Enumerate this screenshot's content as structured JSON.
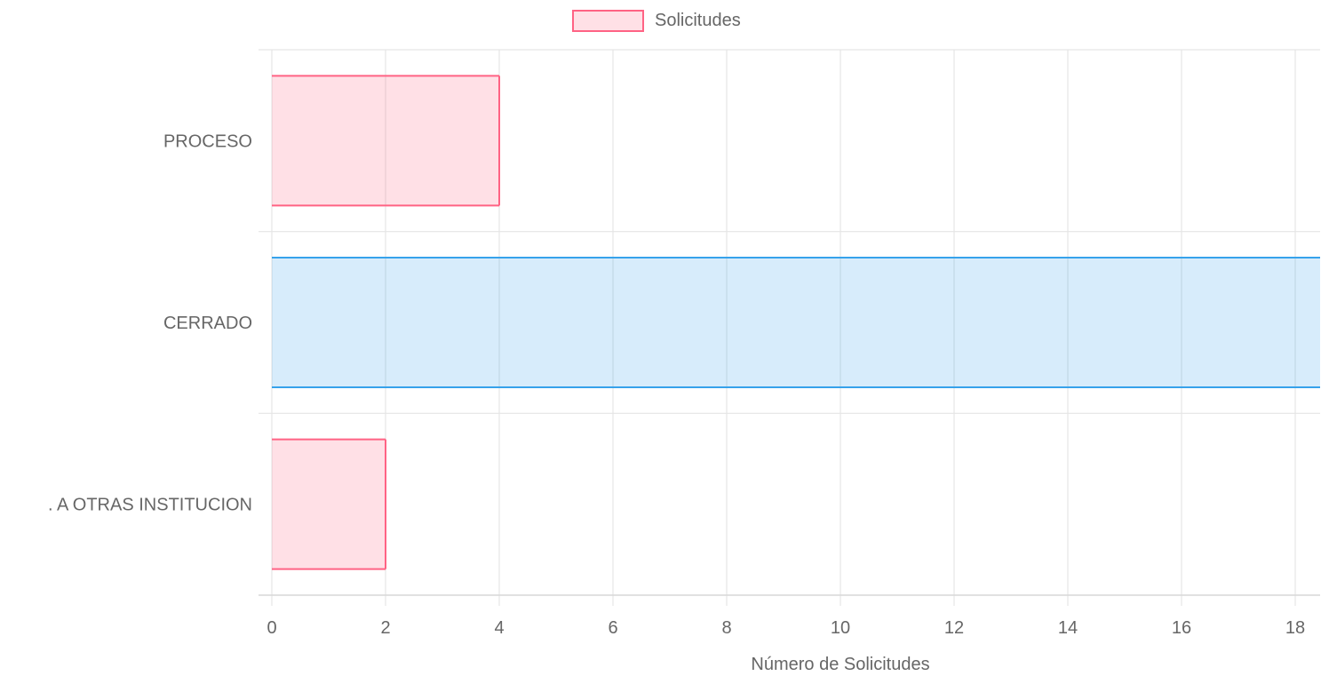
{
  "chart_data": {
    "type": "bar",
    "orientation": "horizontal",
    "categories": [
      "PROCESO",
      "CERRADO",
      "TRANSFERIDA A OTRAS INSTITUCIONES"
    ],
    "category_labels_shown": [
      "PROCESO",
      "CERRADO",
      ". A OTRAS INSTITUCION"
    ],
    "series": [
      {
        "name": "Solicitudes",
        "values": [
          4,
          19,
          2
        ]
      }
    ],
    "bar_colors": [
      {
        "fill": "rgba(255, 99, 132, 0.2)",
        "stroke": "#ff6384"
      },
      {
        "fill": "rgba(54, 162, 235, 0.2)",
        "stroke": "#36a2eb"
      },
      {
        "fill": "rgba(255, 99, 132, 0.2)",
        "stroke": "#ff6384"
      }
    ],
    "legend": {
      "label": "Solicitudes",
      "position": "top-center",
      "swatch_fill": "rgba(255, 99, 132, 0.2)",
      "swatch_stroke": "#ff6384"
    },
    "xlabel": "Número de Solicitudes",
    "ylabel": "",
    "xticks": [
      0,
      2,
      4,
      6,
      8,
      10,
      12,
      14,
      16,
      18
    ],
    "xlim": [
      0,
      18.5
    ],
    "grid": true,
    "grid_color": "#e5e5e5",
    "text_color": "#666666"
  }
}
